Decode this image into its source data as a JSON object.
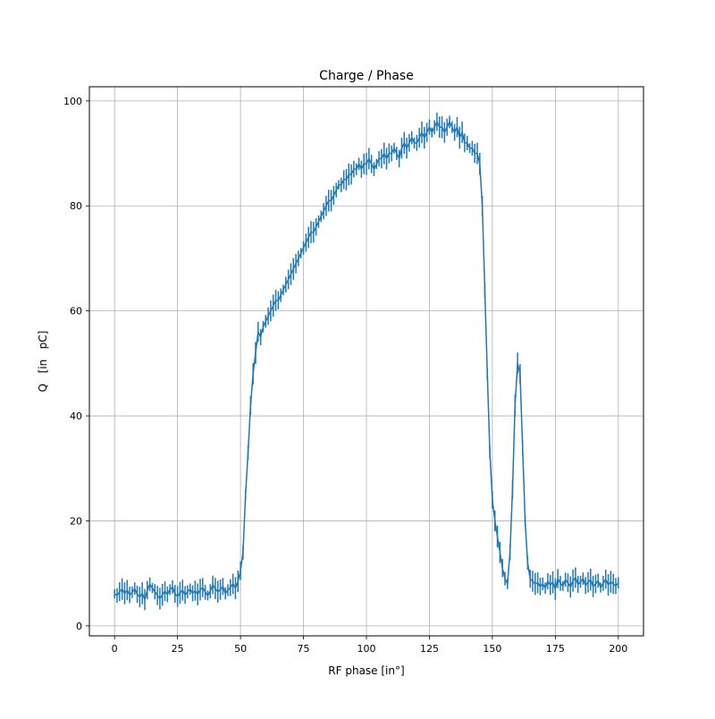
{
  "chart_data": {
    "type": "line",
    "title": "Charge / Phase",
    "xlabel": "RF phase [in°]",
    "ylabel": "Q   [in   pC]",
    "xlim": [
      -10,
      210
    ],
    "ylim": [
      -1.9,
      102.7
    ],
    "xticks": [
      0,
      25,
      50,
      75,
      100,
      125,
      150,
      175,
      200
    ],
    "yticks": [
      0,
      20,
      40,
      60,
      80,
      100
    ],
    "grid": true,
    "series": [
      {
        "name": "Q",
        "color": "#1f77b4",
        "x_start": 0,
        "x_step": 1,
        "yerr": 1.5,
        "values": [
          6.1,
          5.8,
          6.5,
          7.0,
          6.2,
          6.8,
          5.9,
          6.4,
          7.1,
          6.0,
          5.5,
          6.2,
          5.0,
          6.8,
          7.9,
          7.2,
          6.5,
          5.8,
          5.2,
          5.9,
          6.6,
          6.0,
          6.9,
          7.4,
          6.1,
          5.6,
          6.3,
          6.8,
          5.9,
          6.5,
          7.0,
          6.2,
          6.7,
          6.0,
          6.9,
          7.3,
          6.4,
          5.8,
          6.6,
          7.8,
          7.1,
          6.5,
          6.9,
          7.5,
          6.2,
          6.8,
          7.3,
          8.0,
          7.2,
          8.5,
          10.5,
          14,
          25,
          33,
          42,
          48,
          52,
          56,
          55,
          57,
          58,
          59,
          60,
          61,
          62,
          62,
          63,
          64,
          65,
          66,
          67,
          68,
          69,
          70,
          71,
          72,
          73,
          74,
          75,
          75,
          76,
          77,
          78,
          79,
          80,
          81,
          81,
          82,
          83,
          84,
          84,
          85,
          85,
          86,
          86,
          87,
          87,
          88,
          87,
          88,
          88,
          89,
          88,
          87,
          88,
          89,
          89,
          90,
          89,
          90,
          90,
          91,
          90,
          89,
          91,
          92,
          91,
          92,
          93,
          92,
          92,
          93,
          94,
          93,
          94,
          95,
          94,
          95,
          96,
          95,
          95,
          94,
          95,
          96,
          95,
          94,
          95,
          93,
          94,
          92,
          92,
          91,
          91,
          90,
          90,
          88,
          80,
          64,
          48,
          33,
          24,
          20,
          17,
          14,
          11,
          9,
          8,
          14,
          26,
          42,
          50,
          48,
          34,
          20,
          12,
          9,
          8.5,
          8,
          8.2,
          7.5,
          8,
          7.2,
          8.5,
          7.8,
          8.3,
          7.0,
          9.0,
          8.1,
          7.6,
          8.8,
          8.2,
          7.4,
          8.6,
          9.2,
          7.9,
          8.4,
          9.0,
          7.7,
          8.3,
          8.8,
          7.5,
          8.0,
          8.6,
          7.3,
          8.1,
          8.9,
          7.8,
          8.4,
          8.0,
          7.6,
          8.2
        ]
      }
    ]
  }
}
